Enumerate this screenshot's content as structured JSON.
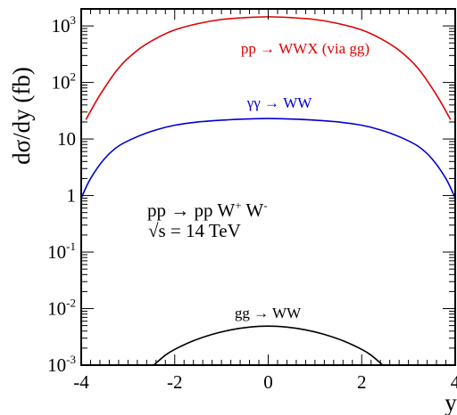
{
  "chart_data": {
    "type": "line",
    "title": "",
    "xlabel": "y",
    "ylabel": "dσ/dy (fb)",
    "xlim": [
      -4,
      4
    ],
    "ylim": [
      0.001,
      2000
    ],
    "yscale": "log",
    "grid": false,
    "x_ticks": [
      {
        "value": -4,
        "label": "-4"
      },
      {
        "value": -2,
        "label": "-2"
      },
      {
        "value": 0,
        "label": "0"
      },
      {
        "value": 2,
        "label": "2"
      },
      {
        "value": 4,
        "label": "4"
      }
    ],
    "y_ticks": [
      {
        "value": 0.001,
        "base": "10",
        "exp": "-3"
      },
      {
        "value": 0.01,
        "base": "10",
        "exp": "-2"
      },
      {
        "value": 0.1,
        "base": "10",
        "exp": "-1"
      },
      {
        "value": 1,
        "base": "1",
        "exp": ""
      },
      {
        "value": 10,
        "base": "10",
        "exp": ""
      },
      {
        "value": 100,
        "base": "10",
        "exp": "2"
      },
      {
        "value": 1000,
        "base": "10",
        "exp": "3"
      }
    ],
    "process_label": {
      "line1": "pp → pp W",
      "line1_sup1": "+",
      "line1_mid": " W",
      "line1_sup2": "-",
      "line2_root": "√s",
      "line2_rest": " = 14 TeV"
    },
    "series": [
      {
        "name": "pp → WWX (via gg)",
        "color": "#e00000",
        "x": [
          -3.9,
          -3.6,
          -3.2,
          -2.8,
          -2.4,
          -2.0,
          -1.5,
          -1.0,
          -0.5,
          0,
          0.5,
          1.0,
          1.5,
          2.0,
          2.4,
          2.8,
          3.2,
          3.6,
          3.9
        ],
        "y": [
          22,
          60,
          180,
          370,
          600,
          850,
          1100,
          1300,
          1400,
          1450,
          1400,
          1300,
          1100,
          850,
          600,
          370,
          180,
          60,
          22
        ]
      },
      {
        "name": "γγ → WW",
        "color": "#0000d0",
        "x": [
          -4.0,
          -3.8,
          -3.5,
          -3.2,
          -2.8,
          -2.4,
          -2.0,
          -1.5,
          -1.0,
          -0.5,
          0,
          0.5,
          1.0,
          1.5,
          2.0,
          2.4,
          2.8,
          3.2,
          3.5,
          3.8,
          4.0
        ],
        "y": [
          0.9,
          2.0,
          4.5,
          7.5,
          11,
          14.5,
          17.5,
          20,
          21.5,
          22.5,
          23,
          22.5,
          21.5,
          20,
          17.5,
          14.5,
          11,
          7.5,
          4.5,
          2.0,
          0.9
        ]
      },
      {
        "name": "gg → WW",
        "color": "#000000",
        "x": [
          -2.45,
          -2.2,
          -2.0,
          -1.6,
          -1.2,
          -0.8,
          -0.4,
          0,
          0.4,
          0.8,
          1.2,
          1.6,
          2.0,
          2.2,
          2.45
        ],
        "y": [
          0.001,
          0.0015,
          0.0019,
          0.0027,
          0.0035,
          0.0042,
          0.0047,
          0.0049,
          0.0047,
          0.0042,
          0.0035,
          0.0027,
          0.0019,
          0.0015,
          0.001
        ]
      }
    ]
  }
}
